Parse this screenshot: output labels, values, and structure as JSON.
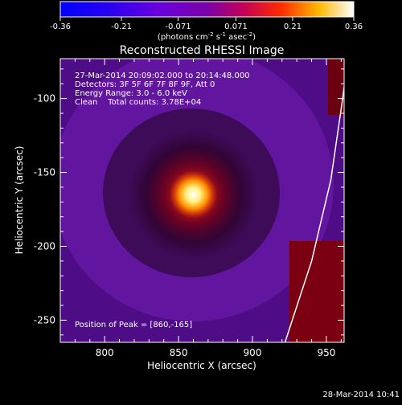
{
  "chart_data": {
    "type": "heatmap",
    "title": "Reconstructed RHESSI Image",
    "xlabel": "Heliocentric X (arcsec)",
    "ylabel": "Heliocentric Y (arcsec)",
    "xlim": [
      770,
      962
    ],
    "ylim": [
      -265,
      -73
    ],
    "x_ticks": [
      800,
      850,
      900,
      950
    ],
    "y_ticks": [
      -100,
      -150,
      -200,
      -250
    ],
    "colorbar": {
      "ticks": [
        "-0.36",
        "-0.21",
        "-0.071",
        "0.071",
        "0.21",
        "0.36"
      ],
      "range": [
        -0.36,
        0.36
      ],
      "label_pre": "(photons cm",
      "sup1": "-2",
      "label_mid": " s",
      "sup2": "-1",
      "label_mid2": " asec",
      "sup3": "-2",
      "label_post": ")"
    },
    "source": {
      "peak_x": 860,
      "peak_y": -165,
      "peak_value": 0.36,
      "limb_points": [
        [
          922,
          -265
        ],
        [
          940,
          -210
        ],
        [
          953,
          -155
        ],
        [
          961,
          -100
        ],
        [
          963,
          -85
        ]
      ]
    },
    "annotations": {
      "time_range": "27-Mar-2014 20:09:02.000 to 20:14:48.000",
      "detectors": "Detectors: 3F 5F 6F 7F 8F 9F, Att 0",
      "energy": "Energy Range: 3.0 - 6.0 keV",
      "clean": "Clean    Total counts: 3.78E+04",
      "peak_position": "Position of Peak = [860,-165]"
    },
    "timestamp": "28-Mar-2014 10:41"
  }
}
